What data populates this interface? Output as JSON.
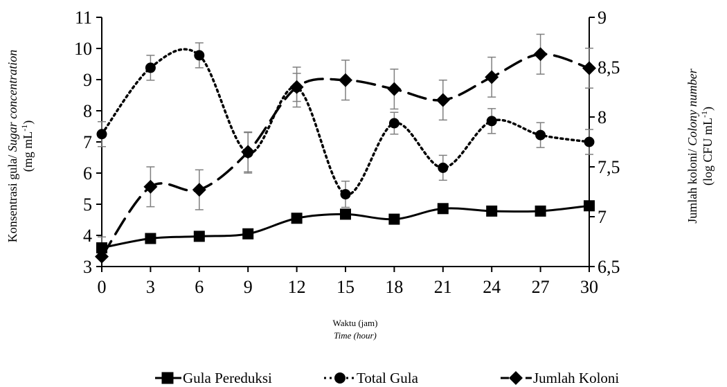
{
  "chart_data": {
    "type": "line",
    "x": [
      0,
      3,
      6,
      9,
      12,
      15,
      18,
      21,
      24,
      27,
      30
    ],
    "x_ticks": [
      "0",
      "3",
      "6",
      "9",
      "12",
      "15",
      "18",
      "21",
      "24",
      "27",
      "30"
    ],
    "xlabel": "Waktu (jam)",
    "xlabel_en": "Time (hour)",
    "ylabel_left": {
      "prefix": "Konsentrasi gula/ ",
      "italic": "Sugar concentration",
      "line2_prefix": "(mg mL",
      "line2_sup": "-1",
      "line2_suffix": ")"
    },
    "ylabel_right": {
      "prefix": "Jumlah koloni/ ",
      "italic": "Colony number",
      "line2_prefix": "(log CFU mL",
      "line2_sup": "-1",
      "line2_suffix": ")"
    },
    "y_left": {
      "min": 3,
      "max": 11,
      "ticks": [
        "3",
        "4",
        "5",
        "6",
        "7",
        "8",
        "9",
        "10",
        "11"
      ]
    },
    "y_right": {
      "min": 6.5,
      "max": 9,
      "ticks": [
        "6,5",
        "7",
        "7,5",
        "8",
        "8,5",
        "9"
      ]
    },
    "grid": false,
    "legend_position": "bottom",
    "series": [
      {
        "name": "Gula Pereduksi",
        "axis": "left",
        "marker": "square",
        "style": "solid",
        "values": [
          3.6,
          3.9,
          3.97,
          4.05,
          4.55,
          4.68,
          4.52,
          4.86,
          4.78,
          4.78,
          4.95
        ],
        "errors": [
          0.35,
          0,
          0,
          0,
          0,
          0,
          0,
          0,
          0,
          0,
          0
        ]
      },
      {
        "name": "Total Gula",
        "axis": "left",
        "marker": "circle",
        "style": "dotted",
        "values": [
          7.25,
          9.38,
          9.78,
          6.65,
          8.75,
          5.32,
          7.6,
          6.17,
          7.67,
          7.22,
          7.0
        ],
        "errors": [
          0.4,
          0.4,
          0.4,
          0.65,
          0.45,
          0.42,
          0.35,
          0.4,
          0.4,
          0.4,
          0.4
        ]
      },
      {
        "name": "Jumlah Koloni",
        "axis": "right",
        "marker": "diamond",
        "style": "dashed",
        "values": [
          6.6,
          7.3,
          7.27,
          7.65,
          8.3,
          8.37,
          8.28,
          8.17,
          8.4,
          8.63,
          8.49
        ],
        "errors": [
          0,
          0.2,
          0.2,
          0.2,
          0.2,
          0.2,
          0.2,
          0.2,
          0.2,
          0.2,
          0.2
        ]
      }
    ]
  }
}
